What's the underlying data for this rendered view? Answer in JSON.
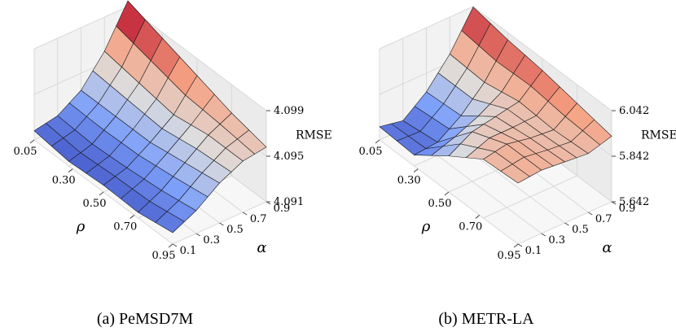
{
  "chart_data": [
    {
      "type": "surface3d",
      "caption": "(a) PeMSD7M",
      "xlabel": "ρ",
      "ylabel": "α",
      "zlabel": "RMSE",
      "x_ticks": [
        "0.05",
        "0.30",
        "0.50",
        "0.70",
        "0.95"
      ],
      "y_ticks": [
        "0.1",
        "0.3",
        "0.5",
        "0.7",
        "0.9"
      ],
      "z_ticks": [
        "4.091",
        "4.095",
        "4.099"
      ],
      "zlim": [
        4.091,
        4.099
      ],
      "x": [
        0.05,
        0.3,
        0.5,
        0.7,
        0.95
      ],
      "y": [
        0.1,
        0.3,
        0.5,
        0.7,
        0.9
      ],
      "z": [
        [
          4.0918,
          4.0922,
          4.0935,
          4.096,
          4.0995
        ],
        [
          4.0914,
          4.092,
          4.0935,
          4.0955,
          4.0985
        ],
        [
          4.0916,
          4.0922,
          4.0935,
          4.095,
          4.0975
        ],
        [
          4.0915,
          4.0925,
          4.094,
          4.0955,
          4.0965
        ],
        [
          4.092,
          4.093,
          4.0945,
          4.0955,
          4.0958
        ]
      ]
    },
    {
      "type": "surface3d",
      "caption": "(b) METR-LA",
      "xlabel": "ρ",
      "ylabel": "α",
      "zlabel": "RMSE",
      "x_ticks": [
        "0.05",
        "0.30",
        "0.50",
        "0.70",
        "0.95"
      ],
      "y_ticks": [
        "0.1",
        "0.3",
        "0.5",
        "0.7",
        "0.9"
      ],
      "z_ticks": [
        "5.642",
        "5.842",
        "6.042"
      ],
      "zlim": [
        5.642,
        6.042
      ],
      "x": [
        0.05,
        0.3,
        0.5,
        0.7,
        0.95
      ],
      "y": [
        0.1,
        0.3,
        0.5,
        0.7,
        0.9
      ],
      "z": [
        [
          5.7,
          5.68,
          5.76,
          5.88,
          6.04
        ],
        [
          5.69,
          5.7,
          5.77,
          5.87,
          6.01
        ],
        [
          5.8,
          5.86,
          5.88,
          5.9,
          5.99
        ],
        [
          5.9,
          5.92,
          5.9,
          5.89,
          5.96
        ],
        [
          5.91,
          5.92,
          5.91,
          5.9,
          5.93
        ]
      ]
    }
  ]
}
